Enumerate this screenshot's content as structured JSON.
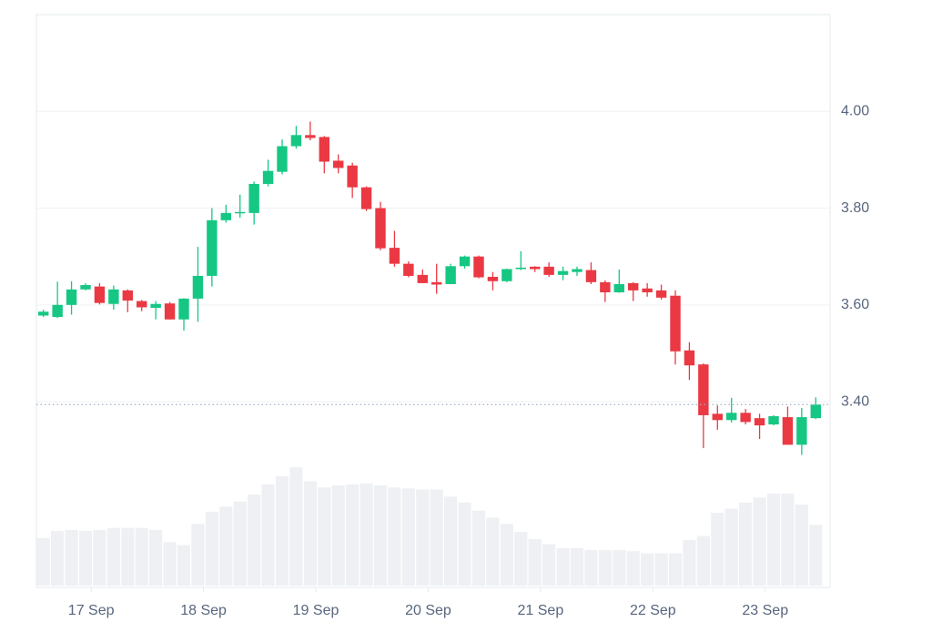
{
  "chart_data": {
    "type": "candlestick",
    "x": [
      0,
      1,
      2,
      3,
      4,
      5,
      6,
      7,
      8,
      9,
      10,
      11,
      12,
      13,
      14,
      15,
      16,
      17,
      18,
      19,
      20,
      21,
      22,
      23,
      24,
      25,
      26,
      27,
      28,
      29,
      30,
      31,
      32,
      33,
      34,
      35,
      36,
      37,
      38,
      39,
      40,
      41,
      42,
      43,
      44,
      45,
      46,
      47,
      48,
      49,
      50,
      51,
      52,
      53,
      54,
      55
    ],
    "open": [
      3.578,
      3.575,
      3.6,
      3.632,
      3.638,
      3.602,
      3.63,
      3.608,
      3.594,
      3.603,
      3.57,
      3.613,
      3.66,
      3.775,
      3.79,
      3.79,
      3.85,
      3.875,
      3.928,
      3.951,
      3.947,
      3.898,
      3.888,
      3.843,
      3.8,
      3.718,
      3.685,
      3.662,
      3.647,
      3.643,
      3.68,
      3.7,
      3.658,
      3.649,
      3.674,
      3.679,
      3.679,
      3.662,
      3.668,
      3.672,
      3.647,
      3.626,
      3.645,
      3.634,
      3.63,
      3.619,
      3.506,
      3.477,
      3.375,
      3.362,
      3.377,
      3.366,
      3.353,
      3.368,
      3.311,
      3.366
    ],
    "high": [
      3.59,
      3.648,
      3.649,
      3.645,
      3.645,
      3.64,
      3.632,
      3.61,
      3.608,
      3.606,
      3.614,
      3.72,
      3.8,
      3.807,
      3.828,
      3.855,
      3.9,
      3.942,
      3.97,
      3.979,
      3.949,
      3.911,
      3.894,
      3.845,
      3.813,
      3.753,
      3.69,
      3.673,
      3.685,
      3.685,
      3.702,
      3.702,
      3.668,
      3.675,
      3.711,
      3.68,
      3.688,
      3.679,
      3.679,
      3.688,
      3.651,
      3.673,
      3.647,
      3.645,
      3.642,
      3.63,
      3.523,
      3.479,
      3.392,
      3.408,
      3.385,
      3.375,
      3.372,
      3.39,
      3.387,
      3.409
    ],
    "low": [
      3.575,
      3.573,
      3.58,
      3.63,
      3.601,
      3.59,
      3.585,
      3.587,
      3.57,
      3.57,
      3.547,
      3.565,
      3.638,
      3.77,
      3.78,
      3.766,
      3.845,
      3.87,
      3.923,
      3.94,
      3.872,
      3.872,
      3.821,
      3.794,
      3.713,
      3.679,
      3.657,
      3.645,
      3.623,
      3.643,
      3.675,
      3.655,
      3.63,
      3.647,
      3.672,
      3.668,
      3.658,
      3.651,
      3.66,
      3.643,
      3.606,
      3.625,
      3.608,
      3.617,
      3.611,
      3.477,
      3.445,
      3.304,
      3.342,
      3.357,
      3.353,
      3.323,
      3.351,
      3.311,
      3.29,
      3.364
    ],
    "close": [
      3.586,
      3.6,
      3.632,
      3.641,
      3.604,
      3.632,
      3.609,
      3.595,
      3.602,
      3.57,
      3.613,
      3.66,
      3.775,
      3.79,
      3.792,
      3.85,
      3.877,
      3.928,
      3.951,
      3.945,
      3.896,
      3.883,
      3.843,
      3.798,
      3.717,
      3.685,
      3.66,
      3.645,
      3.642,
      3.68,
      3.7,
      3.657,
      3.649,
      3.674,
      3.677,
      3.674,
      3.662,
      3.67,
      3.674,
      3.647,
      3.626,
      3.643,
      3.63,
      3.626,
      3.615,
      3.504,
      3.475,
      3.372,
      3.362,
      3.377,
      3.358,
      3.351,
      3.37,
      3.311,
      3.368,
      3.394
    ],
    "volume": [
      47,
      54,
      55,
      54,
      55,
      57,
      57,
      57,
      55,
      43,
      40,
      61,
      73,
      78,
      83,
      90,
      100,
      108,
      117,
      103,
      97,
      99,
      100,
      101,
      99,
      97,
      96,
      95,
      95,
      88,
      82,
      74,
      67,
      61,
      53,
      46,
      41,
      37,
      37,
      35,
      35,
      35,
      34,
      32,
      32,
      32,
      45,
      49,
      72,
      76,
      82,
      87,
      91,
      91,
      80,
      60
    ],
    "up_color": "#16c784",
    "down_color": "#ea3943",
    "volume_color": "#eef0f3",
    "xlim": [
      -0.5,
      55.5
    ],
    "xticks": [
      {
        "value": 3.4,
        "label": "17 Sep"
      },
      {
        "value": 11.4,
        "label": "18 Sep"
      },
      {
        "value": 19.4,
        "label": "19 Sep"
      },
      {
        "value": 27.4,
        "label": "20 Sep"
      },
      {
        "value": 35.4,
        "label": "21 Sep"
      },
      {
        "value": 43.4,
        "label": "22 Sep"
      },
      {
        "value": 51.4,
        "label": "23 Sep"
      }
    ],
    "ylim": [
      3.02,
      4.2
    ],
    "yticks": [
      {
        "value": 3.4,
        "label": "3.40"
      },
      {
        "value": 3.6,
        "label": "3.60"
      },
      {
        "value": 3.8,
        "label": "3.80"
      },
      {
        "value": 4.0,
        "label": "4.00"
      }
    ],
    "grid": true
  }
}
